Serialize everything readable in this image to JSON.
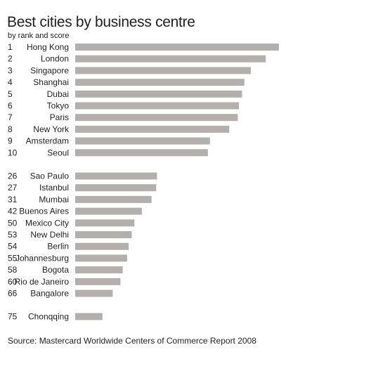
{
  "chart_data": {
    "type": "bar",
    "orientation": "horizontal",
    "title": "Best cities by business centre",
    "subtitle": "by rank and score",
    "source": "Source: Mastercard Worldwide Centers of Commerce Report 2008",
    "bar_color": "#b4afaf",
    "categories": [
      {
        "rank": "1",
        "city": "Hong Kong",
        "value": 79.2
      },
      {
        "rank": "2",
        "city": "London",
        "value": 74.1
      },
      {
        "rank": "3",
        "city": "Singapore",
        "value": 68.3
      },
      {
        "rank": "4",
        "city": "Shanghai",
        "value": 65.8
      },
      {
        "rank": "5",
        "city": "Dubai",
        "value": 64.9
      },
      {
        "rank": "6",
        "city": "Tokyo",
        "value": 63.7
      },
      {
        "rank": "7",
        "city": "Paris",
        "value": 63.2
      },
      {
        "rank": "8",
        "city": "New York",
        "value": 59.9
      },
      {
        "rank": "9",
        "city": "Amsterdam",
        "value": 52.4
      },
      {
        "rank": "10",
        "city": "Seoul",
        "value": 51.6
      },
      {
        "rank": "26",
        "city": "Sao Paulo",
        "value": 31.8
      },
      {
        "rank": "27",
        "city": "Istanbul",
        "value": 31.5
      },
      {
        "rank": "31",
        "city": "Mumbai",
        "value": 29.7
      },
      {
        "rank": "42",
        "city": "Buenos Aires",
        "value": 25.9
      },
      {
        "rank": "50",
        "city": "Mexico City",
        "value": 23.0
      },
      {
        "rank": "53",
        "city": "New Delhi",
        "value": 22.0
      },
      {
        "rank": "54",
        "city": "Berlin",
        "value": 20.8
      },
      {
        "rank": "55",
        "city": "Johannesburg",
        "value": 20.2
      },
      {
        "rank": "58",
        "city": "Bogota",
        "value": 18.5
      },
      {
        "rank": "60",
        "city": "Rio de Janeiro",
        "value": 17.6
      },
      {
        "rank": "66",
        "city": "Bangalore",
        "value": 14.6
      },
      {
        "rank": "75",
        "city": "Chonqqing",
        "value": 10.6
      }
    ],
    "xlim": [
      0,
      100
    ],
    "grid": false,
    "legend": "none"
  }
}
